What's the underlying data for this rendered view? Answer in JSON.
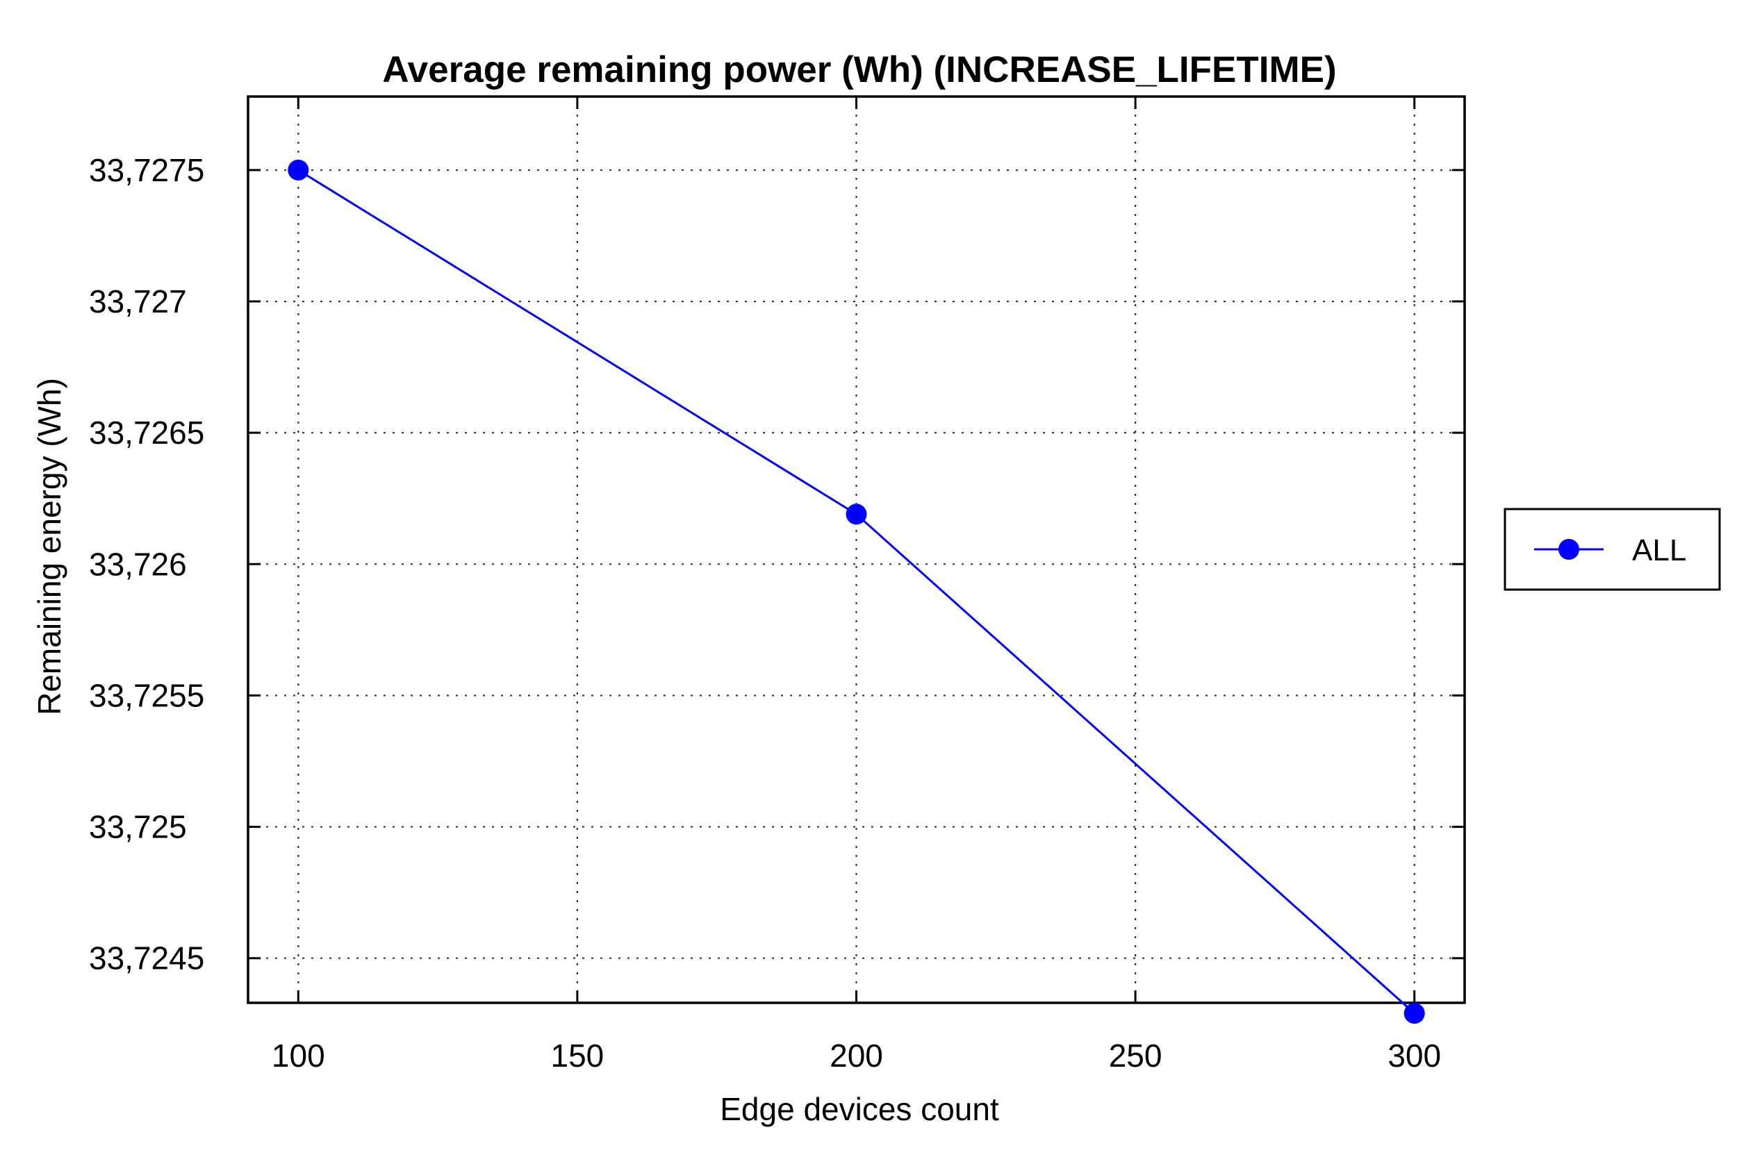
{
  "chart_data": {
    "type": "line",
    "title": "Average remaining power (Wh) (INCREASE_LIFETIME)",
    "xlabel": "Edge devices count",
    "ylabel": "Remaining energy (Wh)",
    "xlim": [
      91,
      309
    ],
    "ylim": [
      33.72433,
      33.72778
    ],
    "x_ticks": [
      100,
      150,
      200,
      250,
      300
    ],
    "x_tick_labels": [
      "100",
      "150",
      "200",
      "250",
      "300"
    ],
    "y_ticks": [
      33.7245,
      33.725,
      33.7255,
      33.726,
      33.7265,
      33.727,
      33.7275
    ],
    "y_tick_labels": [
      "33,7245",
      "33,725",
      "33,7255",
      "33,726",
      "33,7265",
      "33,727",
      "33,7275"
    ],
    "grid": true,
    "legend_position": "right",
    "series": [
      {
        "name": "ALL",
        "color": "#0000ff",
        "marker": "circle",
        "x": [
          100,
          200,
          300
        ],
        "y": [
          33.7275,
          33.72619,
          33.72429
        ]
      }
    ]
  }
}
